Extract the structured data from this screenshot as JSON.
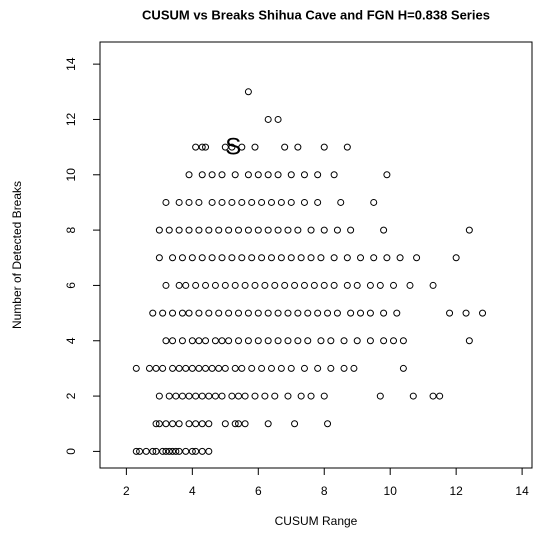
{
  "chart_data": {
    "type": "scatter",
    "title": "CUSUM vs Breaks Shihua Cave and FGN H=0.838 Series",
    "x_label": "CUSUM Range",
    "y_label": "Number of Detected Breaks",
    "xlim": [
      1.2,
      14.3
    ],
    "ylim": [
      -0.6,
      14.8
    ],
    "xticks": [
      2,
      4,
      6,
      8,
      10,
      12,
      14
    ],
    "yticks": [
      0,
      2,
      4,
      6,
      8,
      10,
      12,
      14
    ],
    "color": "#000000",
    "annotation": {
      "text": "S",
      "x": 5.24,
      "y": 10.97
    },
    "x": [
      2.3,
      2.4,
      2.6,
      2.8,
      2.9,
      3.1,
      3.2,
      3.3,
      3.4,
      3.5,
      3.6,
      3.8,
      4.0,
      4.1,
      4.3,
      4.5,
      2.9,
      3.0,
      3.2,
      3.4,
      3.6,
      3.9,
      4.1,
      4.3,
      4.5,
      5.0,
      5.3,
      5.4,
      5.6,
      6.3,
      7.1,
      8.1,
      3.0,
      3.3,
      3.5,
      3.7,
      3.9,
      4.1,
      4.3,
      4.5,
      4.7,
      4.9,
      5.2,
      5.4,
      5.6,
      5.9,
      6.2,
      6.5,
      6.9,
      7.3,
      7.6,
      8.0,
      9.7,
      10.7,
      11.3,
      11.5,
      2.3,
      2.7,
      2.9,
      3.1,
      3.4,
      3.6,
      3.8,
      4.0,
      4.2,
      4.4,
      4.6,
      4.8,
      5.0,
      5.3,
      5.5,
      5.8,
      6.1,
      6.4,
      6.7,
      7.0,
      7.4,
      7.8,
      8.2,
      8.6,
      8.9,
      10.4,
      3.2,
      3.4,
      3.7,
      4.0,
      4.2,
      4.4,
      4.7,
      4.9,
      5.1,
      5.4,
      5.7,
      6.0,
      6.3,
      6.6,
      6.9,
      7.2,
      7.5,
      7.9,
      8.2,
      8.6,
      9.0,
      9.4,
      9.8,
      10.1,
      10.4,
      12.4,
      2.8,
      3.1,
      3.4,
      3.7,
      3.9,
      4.2,
      4.5,
      4.8,
      5.1,
      5.4,
      5.7,
      6.0,
      6.3,
      6.6,
      6.9,
      7.2,
      7.5,
      7.8,
      8.1,
      8.4,
      8.8,
      9.1,
      9.4,
      9.8,
      10.2,
      11.8,
      12.3,
      12.8,
      3.2,
      3.6,
      3.8,
      4.1,
      4.4,
      4.7,
      5.0,
      5.3,
      5.6,
      5.9,
      6.2,
      6.5,
      6.8,
      7.1,
      7.4,
      7.7,
      8.0,
      8.3,
      8.7,
      9.0,
      9.4,
      9.7,
      10.1,
      10.6,
      11.3,
      3.0,
      3.4,
      3.7,
      4.0,
      4.3,
      4.6,
      4.9,
      5.2,
      5.5,
      5.8,
      6.1,
      6.4,
      6.7,
      7.0,
      7.3,
      7.6,
      7.9,
      8.3,
      8.7,
      9.1,
      9.5,
      9.9,
      10.3,
      10.8,
      12.0,
      3.0,
      3.3,
      3.6,
      3.9,
      4.2,
      4.5,
      4.8,
      5.1,
      5.4,
      5.7,
      6.0,
      6.3,
      6.6,
      6.9,
      7.2,
      7.6,
      8.0,
      8.4,
      8.8,
      9.8,
      12.4,
      3.2,
      3.6,
      3.9,
      4.2,
      4.6,
      4.9,
      5.2,
      5.5,
      5.8,
      6.1,
      6.4,
      6.7,
      7.0,
      7.4,
      7.8,
      8.5,
      9.5,
      3.9,
      4.3,
      4.6,
      4.9,
      5.3,
      5.7,
      6.0,
      6.3,
      6.6,
      7.0,
      7.4,
      7.8,
      8.3,
      9.9,
      4.1,
      4.3,
      4.4,
      5.0,
      5.2,
      5.5,
      5.9,
      6.8,
      7.2,
      8.0,
      8.7,
      6.3,
      6.6,
      5.7
    ],
    "values": [
      0,
      0,
      0,
      0,
      0,
      0,
      0,
      0,
      0,
      0,
      0,
      0,
      0,
      0,
      0,
      0,
      1,
      1,
      1,
      1,
      1,
      1,
      1,
      1,
      1,
      1,
      1,
      1,
      1,
      1,
      1,
      1,
      2,
      2,
      2,
      2,
      2,
      2,
      2,
      2,
      2,
      2,
      2,
      2,
      2,
      2,
      2,
      2,
      2,
      2,
      2,
      2,
      2,
      2,
      2,
      2,
      3,
      3,
      3,
      3,
      3,
      3,
      3,
      3,
      3,
      3,
      3,
      3,
      3,
      3,
      3,
      3,
      3,
      3,
      3,
      3,
      3,
      3,
      3,
      3,
      3,
      3,
      4,
      4,
      4,
      4,
      4,
      4,
      4,
      4,
      4,
      4,
      4,
      4,
      4,
      4,
      4,
      4,
      4,
      4,
      4,
      4,
      4,
      4,
      4,
      4,
      4,
      4,
      5,
      5,
      5,
      5,
      5,
      5,
      5,
      5,
      5,
      5,
      5,
      5,
      5,
      5,
      5,
      5,
      5,
      5,
      5,
      5,
      5,
      5,
      5,
      5,
      5,
      5,
      5,
      5,
      6,
      6,
      6,
      6,
      6,
      6,
      6,
      6,
      6,
      6,
      6,
      6,
      6,
      6,
      6,
      6,
      6,
      6,
      6,
      6,
      6,
      6,
      6,
      6,
      6,
      7,
      7,
      7,
      7,
      7,
      7,
      7,
      7,
      7,
      7,
      7,
      7,
      7,
      7,
      7,
      7,
      7,
      7,
      7,
      7,
      7,
      7,
      7,
      7,
      7,
      8,
      8,
      8,
      8,
      8,
      8,
      8,
      8,
      8,
      8,
      8,
      8,
      8,
      8,
      8,
      8,
      8,
      8,
      8,
      8,
      8,
      9,
      9,
      9,
      9,
      9,
      9,
      9,
      9,
      9,
      9,
      9,
      9,
      9,
      9,
      9,
      9,
      9,
      10,
      10,
      10,
      10,
      10,
      10,
      10,
      10,
      10,
      10,
      10,
      10,
      10,
      10,
      11,
      11,
      11,
      11,
      11,
      11,
      11,
      11,
      11,
      11,
      11,
      12,
      12,
      13
    ]
  }
}
